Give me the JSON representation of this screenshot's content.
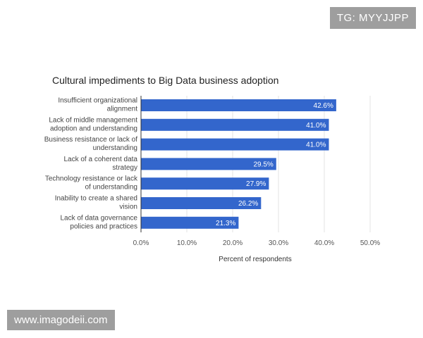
{
  "watermarks": {
    "top": "TG: MYYJJPP",
    "bottom": "www.imagodeii.com"
  },
  "colors": {
    "bar": "#3366cc",
    "grid": "#e3e3e3",
    "axis": "#333333"
  },
  "chart_data": {
    "type": "bar",
    "orientation": "horizontal",
    "title": "Cultural impediments to Big Data business adoption",
    "xlabel": "Percent of respondents",
    "ylabel": "",
    "xlim": [
      0,
      50
    ],
    "grid": true,
    "categories": [
      [
        "Insufficient organizational",
        "alignment"
      ],
      [
        "Lack of middle management",
        "adoption and understanding"
      ],
      [
        "Business resistance or lack of",
        "understanding"
      ],
      [
        "Lack of a coherent data",
        "strategy"
      ],
      [
        "Technology resistance or lack",
        "of understanding"
      ],
      [
        "Inability to create a shared",
        "vision"
      ],
      [
        "Lack of data governance",
        "policies and practices"
      ]
    ],
    "values": [
      42.6,
      41.0,
      41.0,
      29.5,
      27.9,
      26.2,
      21.3
    ],
    "value_labels": [
      "42.6%",
      "41.0%",
      "41.0%",
      "29.5%",
      "27.9%",
      "26.2%",
      "21.3%"
    ],
    "ticks": [
      0,
      10,
      20,
      30,
      40,
      50
    ],
    "tick_labels": [
      "0.0%",
      "10.0%",
      "20.0%",
      "30.0%",
      "40.0%",
      "50.0%"
    ]
  }
}
